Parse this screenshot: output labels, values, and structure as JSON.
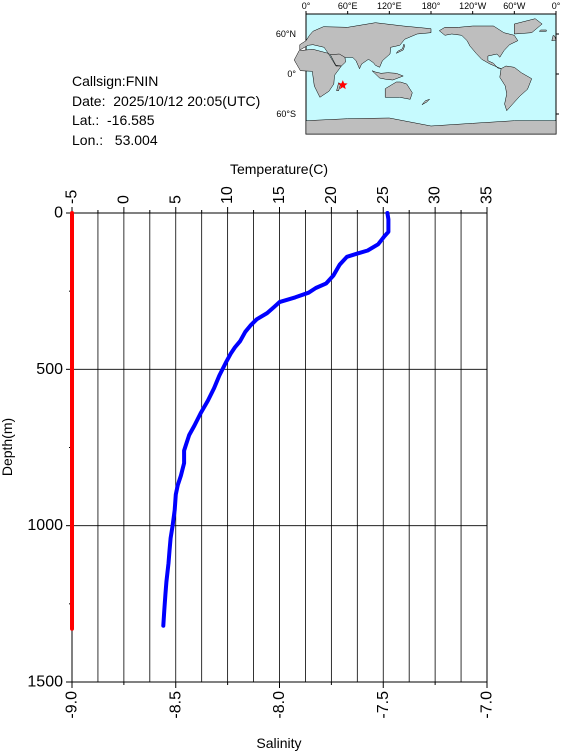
{
  "info": {
    "callsign": "Callsign:FNIN",
    "date": "Date:  2025/10/12 20:05(UTC)",
    "lat": "Lat.:  -16.585",
    "lon": "Lon.:   53.004"
  },
  "map": {
    "lon_labels": [
      "0°",
      "60°E",
      "120°E",
      "180°",
      "120°W",
      "60°W",
      "0°"
    ],
    "lat_labels": [
      "60°N",
      "0°",
      "60°S"
    ],
    "marker": {
      "lat": -16.585,
      "lon": 53.004
    },
    "ocean_color": "#c6fafe",
    "land_color": "#bebebe",
    "marker_color": "#ff0000"
  },
  "chart_data": {
    "type": "line",
    "top_axis_label": "Temperature(C)",
    "bottom_axis_label": "Salinity",
    "ylabel": "Depth(m)",
    "temperature_ticks": [
      "-5",
      "0",
      "5",
      "10",
      "15",
      "20",
      "25",
      "30",
      "35"
    ],
    "salinity_ticks": [
      "-9.0",
      "-8.5",
      "-8.0",
      "-7.5",
      "-7.0"
    ],
    "depth_ticks": [
      "0",
      "500",
      "1000",
      "1500"
    ],
    "xlim_temperature": [
      -5,
      35
    ],
    "xlim_salinity": [
      -9.0,
      -7.0
    ],
    "ylim_depth": [
      0,
      1500
    ],
    "grid": true,
    "series": [
      {
        "color": "#0000ff",
        "x_axis": "temperature",
        "points": [
          [
            25.4,
            0
          ],
          [
            25.5,
            20
          ],
          [
            25.5,
            60
          ],
          [
            25.1,
            75
          ],
          [
            24.5,
            100
          ],
          [
            23.5,
            120
          ],
          [
            22.5,
            130
          ],
          [
            21.5,
            140
          ],
          [
            20.8,
            165
          ],
          [
            20.2,
            200
          ],
          [
            19.5,
            225
          ],
          [
            18.5,
            240
          ],
          [
            17.8,
            255
          ],
          [
            16.5,
            270
          ],
          [
            15.0,
            285
          ],
          [
            14.5,
            300
          ],
          [
            13.8,
            320
          ],
          [
            12.8,
            340
          ],
          [
            12.2,
            360
          ],
          [
            11.7,
            380
          ],
          [
            11.2,
            410
          ],
          [
            10.7,
            430
          ],
          [
            10.3,
            450
          ],
          [
            9.8,
            480
          ],
          [
            9.2,
            520
          ],
          [
            8.7,
            560
          ],
          [
            8.1,
            600
          ],
          [
            7.4,
            640
          ],
          [
            6.8,
            680
          ],
          [
            6.3,
            710
          ],
          [
            6.0,
            740
          ],
          [
            5.8,
            760
          ],
          [
            5.8,
            800
          ],
          [
            5.5,
            840
          ],
          [
            5.2,
            870
          ],
          [
            5.0,
            900
          ],
          [
            4.9,
            950
          ],
          [
            4.7,
            1000
          ],
          [
            4.5,
            1040
          ],
          [
            4.4,
            1080
          ],
          [
            4.3,
            1120
          ],
          [
            4.1,
            1180
          ],
          [
            4.0,
            1220
          ],
          [
            3.9,
            1270
          ],
          [
            3.8,
            1320
          ]
        ]
      },
      {
        "color": "#ff0000",
        "x_axis": "salinity",
        "points": [
          [
            -9.0,
            0
          ],
          [
            -9.0,
            1330
          ]
        ]
      }
    ]
  }
}
